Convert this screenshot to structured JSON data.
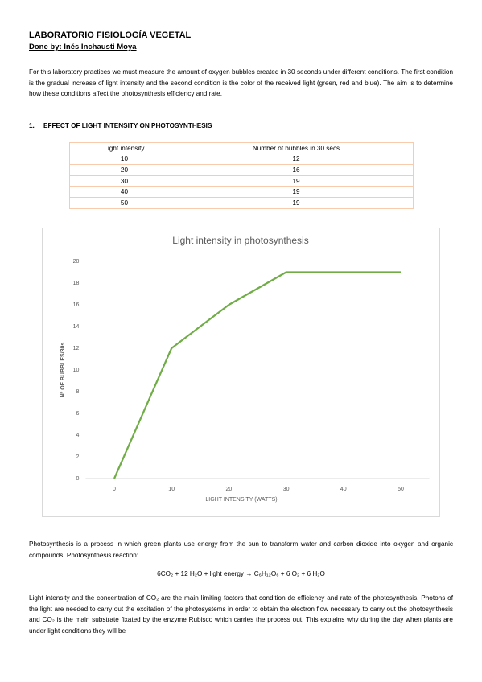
{
  "header": {
    "title": "LABORATORIO FISIOLOGÍA VEGETAL",
    "author": "Done by: Inés Inchausti Moya"
  },
  "intro": "For this laboratory practices we must measure the amount of oxygen bubbles created in 30 seconds under different conditions. The first condition is the gradual increase of light intensity and the second condition is the color of the received light (green, red and blue). The aim is to determine how these conditions affect the photosynthesis efficiency and rate.",
  "section": {
    "number": "1.",
    "title": "EFFECT OF LIGHT INTENSITY ON PHOTOSYNTHESIS"
  },
  "table": {
    "header": [
      "Light intensity",
      "Number of bubbles in 30 secs"
    ],
    "rows": [
      [
        "10",
        "12"
      ],
      [
        "20",
        "16"
      ],
      [
        "30",
        "19"
      ],
      [
        "40",
        "19"
      ],
      [
        "50",
        "19"
      ]
    ]
  },
  "chart_data": {
    "type": "line",
    "title": "Light intensity in photosynthesis",
    "x_label": "LIGHT INTENSITY (WATTS)",
    "y_label": "Nº OF BUBBLES/30s",
    "categories": [
      "0",
      "10",
      "20",
      "30",
      "40",
      "50"
    ],
    "values": [
      0,
      12,
      16,
      19,
      19,
      19
    ],
    "color": "#70ad47",
    "ylim": [
      0,
      20
    ],
    "yticks": [
      0,
      2,
      4,
      6,
      8,
      10,
      12,
      14,
      16,
      18,
      20
    ],
    "grid": false
  },
  "paragraph2": "Photosynthesis is a process in which green plants use energy from the sun to transform water and carbon dioxide into oxygen and organic compounds. Photosynthesis reaction:",
  "equation": "6CO₂ + 12 H₂O + light energy → C₆H₁₂O₆ + 6 O₂ + 6 H₂O",
  "paragraph3": "Light intensity and the concentration of CO₂ are the main limiting factors that condition de efficiency and rate of the photosynthesis. Photons of the light are needed to carry out the excitation of the photosystems in order to obtain the electron flow necessary to carry out the photosynthesis and CO₂ is the main substrate fixated by the enzyme Rubisco which carries the process out. This explains why during the day when plants are under light conditions they will be"
}
